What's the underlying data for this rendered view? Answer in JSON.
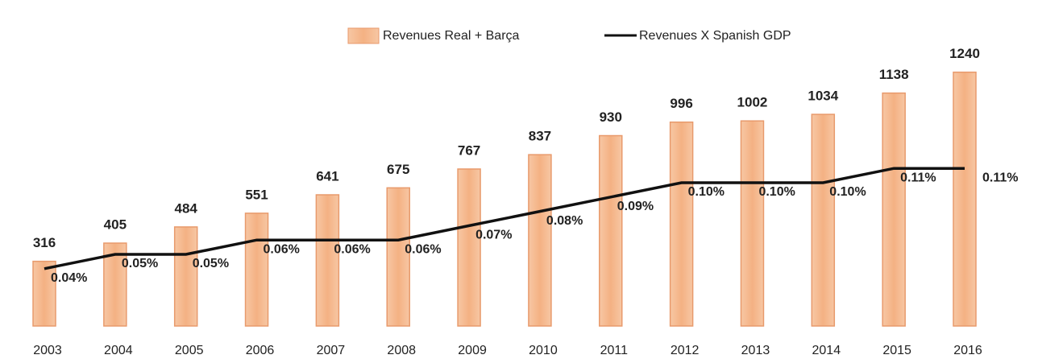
{
  "chart_data": {
    "type": "bar_line",
    "categories": [
      "2003",
      "2004",
      "2005",
      "2006",
      "2007",
      "2008",
      "2009",
      "2010",
      "2011",
      "2012",
      "2013",
      "2014",
      "2015",
      "2016"
    ],
    "series": [
      {
        "name": "Revenues Real + Barça",
        "type": "bar",
        "color": "#f4b183",
        "values": [
          316,
          405,
          484,
          551,
          641,
          675,
          767,
          837,
          930,
          996,
          1002,
          1034,
          1138,
          1240
        ]
      },
      {
        "name": "Revenues X Spanish GDP",
        "type": "line",
        "color": "#111111",
        "axis": "y2",
        "values": [
          0.04,
          0.05,
          0.05,
          0.06,
          0.06,
          0.06,
          0.07,
          0.08,
          0.09,
          0.1,
          0.1,
          0.1,
          0.11,
          0.11
        ],
        "value_labels": [
          "0.04%",
          "0.05%",
          "0.05%",
          "0.06%",
          "0.06%",
          "0.06%",
          "0.07%",
          "0.08%",
          "0.09%",
          "0.10%",
          "0.10%",
          "0.10%",
          "0.11%",
          "0.11%"
        ]
      }
    ],
    "ylim": [
      0,
      1400
    ],
    "y2lim": [
      0,
      0.2
    ]
  }
}
